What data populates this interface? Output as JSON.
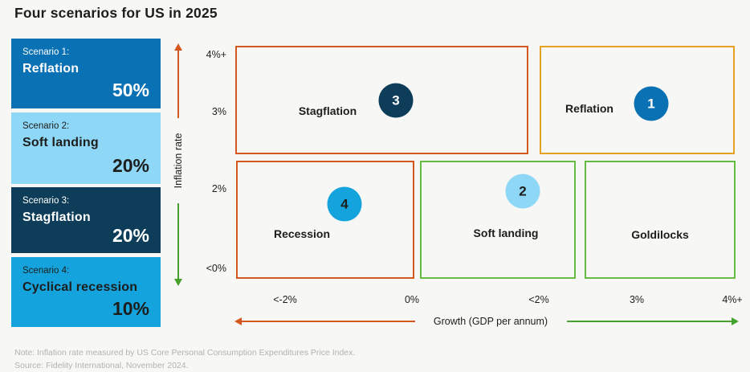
{
  "title": "Four scenarios for US in 2025",
  "colors": {
    "background": "#f7f7f5",
    "text_dark": "#1d1d1b",
    "blue": "#0b71b5",
    "light_blue": "#8ed7f6",
    "navy": "#0e3d59",
    "cyan": "#14a3dc",
    "orange": "#d4571e",
    "amber": "#e6a21e",
    "green_border": "#66bb45",
    "green_arrow": "#46a02c",
    "footer_gray": "#b2b2b0"
  },
  "sidebar": {
    "cards": [
      {
        "scenario": "Scenario 1:",
        "name": "Reflation",
        "probability": "50%",
        "bg": "#0b71b5",
        "text": "#ffffff"
      },
      {
        "scenario": "Scenario 2:",
        "name": "Soft landing",
        "probability": "20%",
        "bg": "#8ed7f6",
        "text": "#1d1d1b"
      },
      {
        "scenario": "Scenario 3:",
        "name": "Stagflation",
        "probability": "20%",
        "bg": "#0e3d59",
        "text": "#ffffff"
      },
      {
        "scenario": "Scenario 4:",
        "name": "Cyclical recession",
        "probability": "10%",
        "bg": "#14a3dc",
        "text": "#1d1d1b"
      }
    ]
  },
  "chart": {
    "y_axis": {
      "label": "Inflation rate",
      "ticks": [
        "4%+",
        "3%",
        "2%",
        "<0%"
      ]
    },
    "x_axis": {
      "label": "Growth (GDP per annum)",
      "ticks": [
        "<-2%",
        "0%",
        "<2%",
        "3%",
        "4%+"
      ]
    },
    "boxes": [
      {
        "label": "Stagflation",
        "number": "3"
      },
      {
        "label": "Reflation",
        "number": "1"
      },
      {
        "label": "Recession",
        "number": "4"
      },
      {
        "label": "Soft landing",
        "number": "2"
      },
      {
        "label": "Goldilocks",
        "number": ""
      }
    ]
  },
  "footer": {
    "note": "Note: Inflation rate measured by US Core Personal Consumption Expenditures Price Index.",
    "source": "Source: Fidelity International, November 2024."
  },
  "chart_data": {
    "type": "quadrant",
    "title": "Four scenarios for US in 2025",
    "xlabel": "Growth (GDP per annum)",
    "ylabel": "Inflation rate",
    "x_ticks": [
      "<-2%",
      "0%",
      "<2%",
      "3%",
      "4%+"
    ],
    "y_ticks": [
      "4%+",
      "3%",
      "2%",
      "<0%"
    ],
    "scenarios": [
      {
        "number": 1,
        "name": "Reflation",
        "probability_pct": 50,
        "region": {
          "growth": "<2% to 4%+",
          "inflation": "~2.5% to 4%+"
        },
        "border_color": "#e6a21e",
        "marker_color": "#0b71b5"
      },
      {
        "number": 2,
        "name": "Soft landing",
        "probability_pct": 20,
        "region": {
          "growth": "0% to <2%",
          "inflation": "<0% to ~2.5%"
        },
        "border_color": "#66bb45",
        "marker_color": "#8ed7f6"
      },
      {
        "number": 3,
        "name": "Stagflation",
        "probability_pct": 20,
        "region": {
          "growth": "<-2% to <2%",
          "inflation": "~2.5% to 4%+"
        },
        "border_color": "#d4571e",
        "marker_color": "#0e3d59"
      },
      {
        "number": 4,
        "name": "Cyclical recession",
        "probability_pct": 10,
        "region": {
          "growth": "<-2% to 0%",
          "inflation": "<0% to ~2.5%"
        },
        "border_color": "#d4571e",
        "marker_color": "#14a3dc",
        "chart_label": "Recession"
      },
      {
        "number": null,
        "name": "Goldilocks",
        "probability_pct": null,
        "region": {
          "growth": "3% to 4%+",
          "inflation": "<0% to ~2.5%"
        },
        "border_color": "#66bb45"
      }
    ],
    "legend_position": "left",
    "grid": false
  }
}
